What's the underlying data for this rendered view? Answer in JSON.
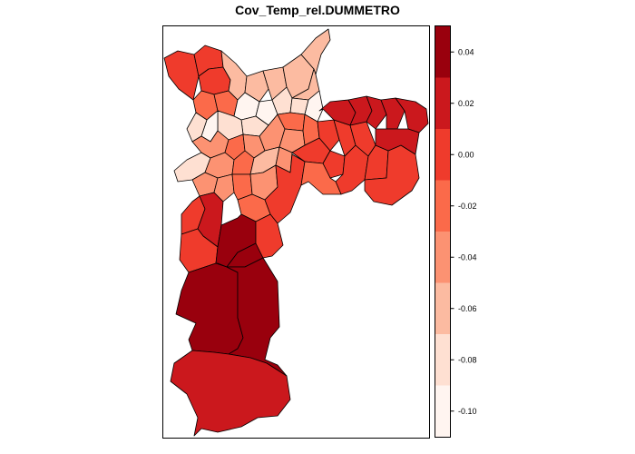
{
  "title": "Cov_Temp_rel.DUMMETRO",
  "legend": {
    "tick_labels": [
      "0.04",
      "0.02",
      "0.00",
      "-0.02",
      "-0.04",
      "-0.06",
      "-0.08",
      "-0.10"
    ],
    "bins": [
      {
        "lower": -0.11,
        "upper": -0.09,
        "color": "#fff5f0"
      },
      {
        "lower": -0.09,
        "upper": -0.07,
        "color": "#fee0d2"
      },
      {
        "lower": -0.07,
        "upper": -0.05,
        "color": "#fcbba1"
      },
      {
        "lower": -0.05,
        "upper": -0.03,
        "color": "#fc9272"
      },
      {
        "lower": -0.03,
        "upper": -0.01,
        "color": "#fb6a4a"
      },
      {
        "lower": -0.01,
        "upper": 0.01,
        "color": "#ef3b2c"
      },
      {
        "lower": 0.01,
        "upper": 0.03,
        "color": "#cb181d"
      },
      {
        "lower": 0.03,
        "upper": 0.05,
        "color": "#99000d"
      }
    ]
  },
  "regions": [
    {
      "id": "nw-a",
      "bin": 5
    },
    {
      "id": "nw-b",
      "bin": 5
    },
    {
      "id": "nw-c",
      "bin": 5
    },
    {
      "id": "nw-d",
      "bin": 4
    },
    {
      "id": "nw-e",
      "bin": 4
    },
    {
      "id": "n-a",
      "bin": 2
    },
    {
      "id": "n-b",
      "bin": 2
    },
    {
      "id": "n-c",
      "bin": 2
    },
    {
      "id": "n-d",
      "bin": 2
    },
    {
      "id": "n-e",
      "bin": 2
    },
    {
      "id": "n-f",
      "bin": 2
    },
    {
      "id": "c-a",
      "bin": 0
    },
    {
      "id": "c-b",
      "bin": 0
    },
    {
      "id": "c-c",
      "bin": 1
    },
    {
      "id": "c-d",
      "bin": 1
    },
    {
      "id": "c-e",
      "bin": 0
    },
    {
      "id": "c-f",
      "bin": 1
    },
    {
      "id": "c-g",
      "bin": 1
    },
    {
      "id": "c-h",
      "bin": 0
    },
    {
      "id": "w-a",
      "bin": 1
    },
    {
      "id": "w-b",
      "bin": 1
    },
    {
      "id": "w-c",
      "bin": 3
    },
    {
      "id": "ce-a",
      "bin": 4
    },
    {
      "id": "ce-b",
      "bin": 3
    },
    {
      "id": "ce-c",
      "bin": 3
    },
    {
      "id": "ce-d",
      "bin": 4
    },
    {
      "id": "ce-e",
      "bin": 3
    },
    {
      "id": "ce-f",
      "bin": 4
    },
    {
      "id": "ce-g",
      "bin": 3
    },
    {
      "id": "ce-h",
      "bin": 4
    },
    {
      "id": "ce-i",
      "bin": 2
    },
    {
      "id": "ce-j",
      "bin": 3
    },
    {
      "id": "s1-a",
      "bin": 3
    },
    {
      "id": "s1-b",
      "bin": 3
    },
    {
      "id": "s1-c",
      "bin": 4
    },
    {
      "id": "s1-d",
      "bin": 3
    },
    {
      "id": "s1-e",
      "bin": 4
    },
    {
      "id": "s1-f",
      "bin": 5
    },
    {
      "id": "e-a",
      "bin": 5
    },
    {
      "id": "e-b",
      "bin": 5
    },
    {
      "id": "e-c",
      "bin": 5
    },
    {
      "id": "e-d",
      "bin": 5
    },
    {
      "id": "e-e",
      "bin": 5
    },
    {
      "id": "e-f",
      "bin": 5
    },
    {
      "id": "e-g",
      "bin": 5
    },
    {
      "id": "e-h",
      "bin": 5
    },
    {
      "id": "e-i",
      "bin": 4
    },
    {
      "id": "ne-a",
      "bin": 6
    },
    {
      "id": "ne-b",
      "bin": 6
    },
    {
      "id": "ne-c",
      "bin": 6
    },
    {
      "id": "ne-d",
      "bin": 6
    },
    {
      "id": "ne-e",
      "bin": 6
    },
    {
      "id": "ne-f",
      "bin": 6
    },
    {
      "id": "sw-a",
      "bin": 5
    },
    {
      "id": "sw-b",
      "bin": 6
    },
    {
      "id": "sw-c",
      "bin": 5
    },
    {
      "id": "s2-a",
      "bin": 7
    },
    {
      "id": "s2-b",
      "bin": 7
    },
    {
      "id": "s2-c",
      "bin": 5
    },
    {
      "id": "s3-a",
      "bin": 7
    },
    {
      "id": "s3-b",
      "bin": 7
    },
    {
      "id": "s4-a",
      "bin": 6
    }
  ]
}
